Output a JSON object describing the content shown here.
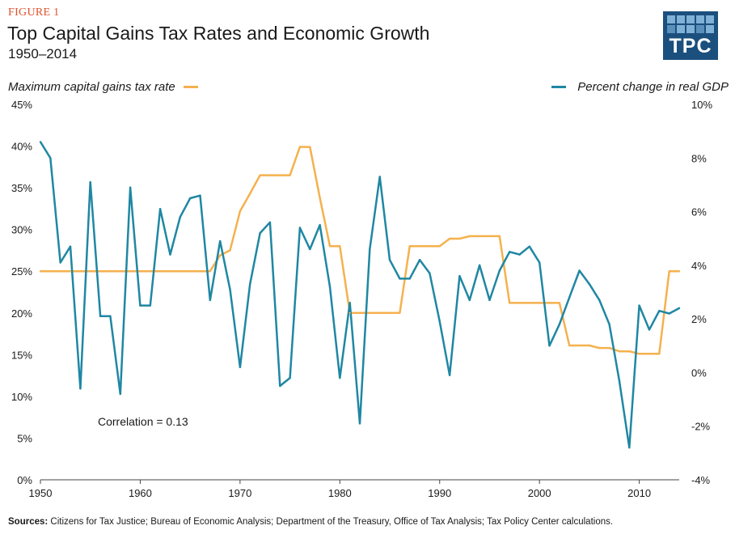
{
  "header": {
    "figure_label": "FIGURE 1",
    "title": "Top Capital Gains Tax Rates and Economic Growth",
    "subtitle": "1950–2014",
    "logo_text": "TPC"
  },
  "colors": {
    "tax_rate": "#f5b14e",
    "gdp": "#1f87a3",
    "figure_label": "#e0522d",
    "logo_bg": "#1b4f7d"
  },
  "footer": {
    "sources_label": "Sources:",
    "sources_text": "Citizens for Tax Justice; Bureau of Economic Analysis; Department of the Treasury, Office of Tax Analysis; Tax Policy Center calculations."
  },
  "chart_data": {
    "type": "line",
    "title": "Top Capital Gains Tax Rates and Economic Growth",
    "subtitle": "1950–2014",
    "xlabel": "",
    "ylabel_left": "Maximum capital gains tax rate",
    "ylabel_right": "Percent change in real GDP",
    "xlim": [
      1950,
      2014
    ],
    "ylim_left": [
      0,
      45
    ],
    "ylim_right": [
      -4,
      10
    ],
    "x_ticks": [
      1950,
      1960,
      1970,
      1980,
      1990,
      2000,
      2010
    ],
    "y_ticks_left": [
      "0%",
      "5%",
      "10%",
      "15%",
      "20%",
      "25%",
      "30%",
      "35%",
      "40%",
      "45%"
    ],
    "y_ticks_right": [
      "-4%",
      "-2%",
      "0%",
      "2%",
      "4%",
      "6%",
      "8%",
      "10%"
    ],
    "grid": false,
    "legend": [
      {
        "name": "Maximum capital gains tax rate",
        "placement": "top-left",
        "axis": "left"
      },
      {
        "name": "Percent change in real GDP",
        "placement": "top-right",
        "axis": "right"
      }
    ],
    "annotation": "Correlation = 0.13",
    "x": [
      1950,
      1951,
      1952,
      1953,
      1954,
      1955,
      1956,
      1957,
      1958,
      1959,
      1960,
      1961,
      1962,
      1963,
      1964,
      1965,
      1966,
      1967,
      1968,
      1969,
      1970,
      1971,
      1972,
      1973,
      1974,
      1975,
      1976,
      1977,
      1978,
      1979,
      1980,
      1981,
      1982,
      1983,
      1984,
      1985,
      1986,
      1987,
      1988,
      1989,
      1990,
      1991,
      1992,
      1993,
      1994,
      1995,
      1996,
      1997,
      1998,
      1999,
      2000,
      2001,
      2002,
      2003,
      2004,
      2005,
      2006,
      2007,
      2008,
      2009,
      2010,
      2011,
      2012,
      2013,
      2014
    ],
    "series": [
      {
        "name": "Maximum capital gains tax rate",
        "axis": "left",
        "unit": "%",
        "values": [
          25,
          25,
          25,
          25,
          25,
          25,
          25,
          25,
          25,
          25,
          25,
          25,
          25,
          25,
          25,
          25,
          25,
          25,
          26.9,
          27.5,
          32.2,
          34.3,
          36.5,
          36.5,
          36.5,
          36.5,
          39.9,
          39.9,
          33.8,
          28,
          28,
          20,
          20,
          20,
          20,
          20,
          20,
          28,
          28,
          28,
          28,
          28.9,
          28.9,
          29.2,
          29.2,
          29.2,
          29.2,
          21.2,
          21.2,
          21.2,
          21.2,
          21.2,
          21.2,
          16.1,
          16.1,
          16.1,
          15.8,
          15.8,
          15.4,
          15.4,
          15.1,
          15.1,
          15.1,
          25,
          25
        ]
      },
      {
        "name": "Percent change in real GDP",
        "axis": "right",
        "unit": "%",
        "values": [
          8.6,
          8.0,
          4.1,
          4.7,
          -0.6,
          7.1,
          2.1,
          2.1,
          -0.8,
          6.9,
          2.5,
          2.5,
          6.1,
          4.4,
          5.8,
          6.5,
          6.6,
          2.7,
          4.9,
          3.1,
          0.2,
          3.3,
          5.2,
          5.6,
          -0.5,
          -0.2,
          5.4,
          4.6,
          5.5,
          3.2,
          -0.2,
          2.6,
          -1.9,
          4.6,
          7.3,
          4.2,
          3.5,
          3.5,
          4.2,
          3.7,
          1.9,
          -0.1,
          3.6,
          2.7,
          4.0,
          2.7,
          3.8,
          4.5,
          4.4,
          4.7,
          4.1,
          1.0,
          1.8,
          2.8,
          3.8,
          3.3,
          2.7,
          1.8,
          -0.3,
          -2.8,
          2.5,
          1.6,
          2.3,
          2.2,
          2.4
        ]
      }
    ]
  }
}
